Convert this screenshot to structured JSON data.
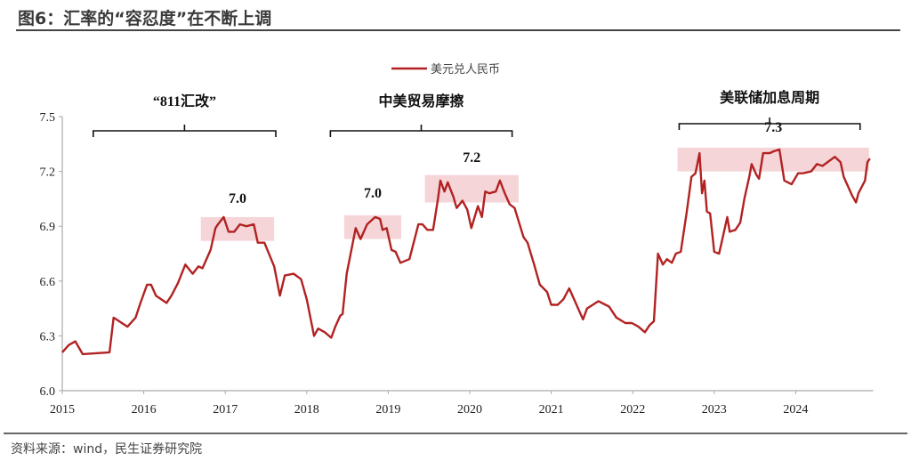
{
  "title": "图6：汇率的“容忍度”在不断上调",
  "source": "资料来源：wind，民生证券研究院",
  "chart_data": {
    "type": "line",
    "title": "",
    "xlabel": "",
    "ylabel": "",
    "xlim": [
      2015,
      2024.95
    ],
    "ylim": [
      6.0,
      7.5
    ],
    "xticks": [
      "2015",
      "2016",
      "2017",
      "2018",
      "2019",
      "2020",
      "2021",
      "2022",
      "2023",
      "2024"
    ],
    "yticks": [
      "6.0",
      "6.3",
      "6.6",
      "6.9",
      "7.2",
      "7.5"
    ],
    "grid": false,
    "legend_placement": "top-center",
    "series": [
      {
        "name": "美元兑人民币",
        "color": "#b22222",
        "points": [
          [
            2015.0,
            6.21
          ],
          [
            2015.08,
            6.25
          ],
          [
            2015.16,
            6.27
          ],
          [
            2015.25,
            6.2
          ],
          [
            2015.58,
            6.21
          ],
          [
            2015.63,
            6.4
          ],
          [
            2015.8,
            6.35
          ],
          [
            2015.9,
            6.4
          ],
          [
            2015.96,
            6.48
          ],
          [
            2016.04,
            6.58
          ],
          [
            2016.09,
            6.58
          ],
          [
            2016.15,
            6.52
          ],
          [
            2016.28,
            6.48
          ],
          [
            2016.34,
            6.52
          ],
          [
            2016.42,
            6.59
          ],
          [
            2016.51,
            6.69
          ],
          [
            2016.6,
            6.64
          ],
          [
            2016.67,
            6.68
          ],
          [
            2016.72,
            6.67
          ],
          [
            2016.82,
            6.77
          ],
          [
            2016.88,
            6.89
          ],
          [
            2016.91,
            6.91
          ],
          [
            2016.98,
            6.95
          ],
          [
            2017.04,
            6.87
          ],
          [
            2017.11,
            6.87
          ],
          [
            2017.18,
            6.91
          ],
          [
            2017.26,
            6.9
          ],
          [
            2017.35,
            6.91
          ],
          [
            2017.4,
            6.81
          ],
          [
            2017.48,
            6.81
          ],
          [
            2017.6,
            6.68
          ],
          [
            2017.67,
            6.52
          ],
          [
            2017.73,
            6.63
          ],
          [
            2017.84,
            6.64
          ],
          [
            2017.93,
            6.61
          ],
          [
            2018.0,
            6.5
          ],
          [
            2018.09,
            6.3
          ],
          [
            2018.14,
            6.34
          ],
          [
            2018.22,
            6.32
          ],
          [
            2018.3,
            6.29
          ],
          [
            2018.35,
            6.35
          ],
          [
            2018.41,
            6.41
          ],
          [
            2018.44,
            6.42
          ],
          [
            2018.49,
            6.64
          ],
          [
            2018.57,
            6.82
          ],
          [
            2018.6,
            6.89
          ],
          [
            2018.66,
            6.83
          ],
          [
            2018.74,
            6.91
          ],
          [
            2018.84,
            6.95
          ],
          [
            2018.9,
            6.94
          ],
          [
            2018.93,
            6.88
          ],
          [
            2018.98,
            6.89
          ],
          [
            2019.04,
            6.77
          ],
          [
            2019.09,
            6.76
          ],
          [
            2019.15,
            6.7
          ],
          [
            2019.26,
            6.72
          ],
          [
            2019.37,
            6.91
          ],
          [
            2019.42,
            6.91
          ],
          [
            2019.48,
            6.88
          ],
          [
            2019.55,
            6.88
          ],
          [
            2019.61,
            7.05
          ],
          [
            2019.64,
            7.15
          ],
          [
            2019.69,
            7.09
          ],
          [
            2019.73,
            7.14
          ],
          [
            2019.8,
            7.06
          ],
          [
            2019.84,
            7.0
          ],
          [
            2019.91,
            7.04
          ],
          [
            2019.97,
            6.99
          ],
          [
            2020.02,
            6.89
          ],
          [
            2020.1,
            7.01
          ],
          [
            2020.15,
            6.95
          ],
          [
            2020.19,
            7.09
          ],
          [
            2020.24,
            7.08
          ],
          [
            2020.32,
            7.09
          ],
          [
            2020.37,
            7.15
          ],
          [
            2020.43,
            7.08
          ],
          [
            2020.49,
            7.02
          ],
          [
            2020.55,
            7.0
          ],
          [
            2020.66,
            6.84
          ],
          [
            2020.71,
            6.81
          ],
          [
            2020.79,
            6.69
          ],
          [
            2020.86,
            6.58
          ],
          [
            2020.95,
            6.54
          ],
          [
            2021.0,
            6.47
          ],
          [
            2021.08,
            6.47
          ],
          [
            2021.15,
            6.5
          ],
          [
            2021.22,
            6.56
          ],
          [
            2021.3,
            6.48
          ],
          [
            2021.39,
            6.39
          ],
          [
            2021.44,
            6.45
          ],
          [
            2021.58,
            6.49
          ],
          [
            2021.71,
            6.46
          ],
          [
            2021.8,
            6.4
          ],
          [
            2021.91,
            6.37
          ],
          [
            2021.99,
            6.37
          ],
          [
            2022.07,
            6.35
          ],
          [
            2022.15,
            6.32
          ],
          [
            2022.21,
            6.36
          ],
          [
            2022.26,
            6.38
          ],
          [
            2022.31,
            6.75
          ],
          [
            2022.37,
            6.69
          ],
          [
            2022.42,
            6.72
          ],
          [
            2022.48,
            6.7
          ],
          [
            2022.53,
            6.75
          ],
          [
            2022.59,
            6.76
          ],
          [
            2022.66,
            6.97
          ],
          [
            2022.72,
            7.17
          ],
          [
            2022.77,
            7.19
          ],
          [
            2022.82,
            7.3
          ],
          [
            2022.85,
            7.08
          ],
          [
            2022.88,
            7.15
          ],
          [
            2022.91,
            6.98
          ],
          [
            2022.95,
            6.97
          ],
          [
            2023.0,
            6.76
          ],
          [
            2023.06,
            6.75
          ],
          [
            2023.16,
            6.95
          ],
          [
            2023.19,
            6.87
          ],
          [
            2023.26,
            6.88
          ],
          [
            2023.32,
            6.92
          ],
          [
            2023.37,
            7.05
          ],
          [
            2023.43,
            7.17
          ],
          [
            2023.46,
            7.24
          ],
          [
            2023.52,
            7.18
          ],
          [
            2023.55,
            7.16
          ],
          [
            2023.6,
            7.3
          ],
          [
            2023.68,
            7.3
          ],
          [
            2023.73,
            7.31
          ],
          [
            2023.8,
            7.32
          ],
          [
            2023.86,
            7.15
          ],
          [
            2023.95,
            7.13
          ],
          [
            2024.03,
            7.19
          ],
          [
            2024.09,
            7.19
          ],
          [
            2024.19,
            7.2
          ],
          [
            2024.26,
            7.24
          ],
          [
            2024.33,
            7.23
          ],
          [
            2024.48,
            7.28
          ],
          [
            2024.55,
            7.25
          ],
          [
            2024.59,
            7.17
          ],
          [
            2024.64,
            7.12
          ],
          [
            2024.69,
            7.07
          ],
          [
            2024.74,
            7.03
          ],
          [
            2024.77,
            7.08
          ],
          [
            2024.85,
            7.15
          ],
          [
            2024.88,
            7.25
          ],
          [
            2024.91,
            7.27
          ]
        ]
      }
    ],
    "annotations": {
      "periods": [
        {
          "label": "“811汇改”",
          "start": 2015.38,
          "end": 2017.62
        },
        {
          "label": "中美贸易摩擦",
          "start": 2018.29,
          "end": 2020.52
        },
        {
          "label": "美联储加息周期",
          "start": 2022.57,
          "end": 2024.79
        }
      ],
      "bands": [
        {
          "label": "7.0",
          "start": 2016.7,
          "end": 2017.6,
          "low": 6.82,
          "high": 6.95
        },
        {
          "label": "7.0",
          "start": 2018.46,
          "end": 2019.16,
          "low": 6.83,
          "high": 6.96
        },
        {
          "label": "7.2",
          "start": 2019.45,
          "end": 2020.6,
          "low": 7.03,
          "high": 7.18
        },
        {
          "label": "7.3",
          "start": 2022.55,
          "end": 2024.9,
          "low": 7.2,
          "high": 7.33
        }
      ],
      "band_color": "#f5d5d8"
    }
  }
}
